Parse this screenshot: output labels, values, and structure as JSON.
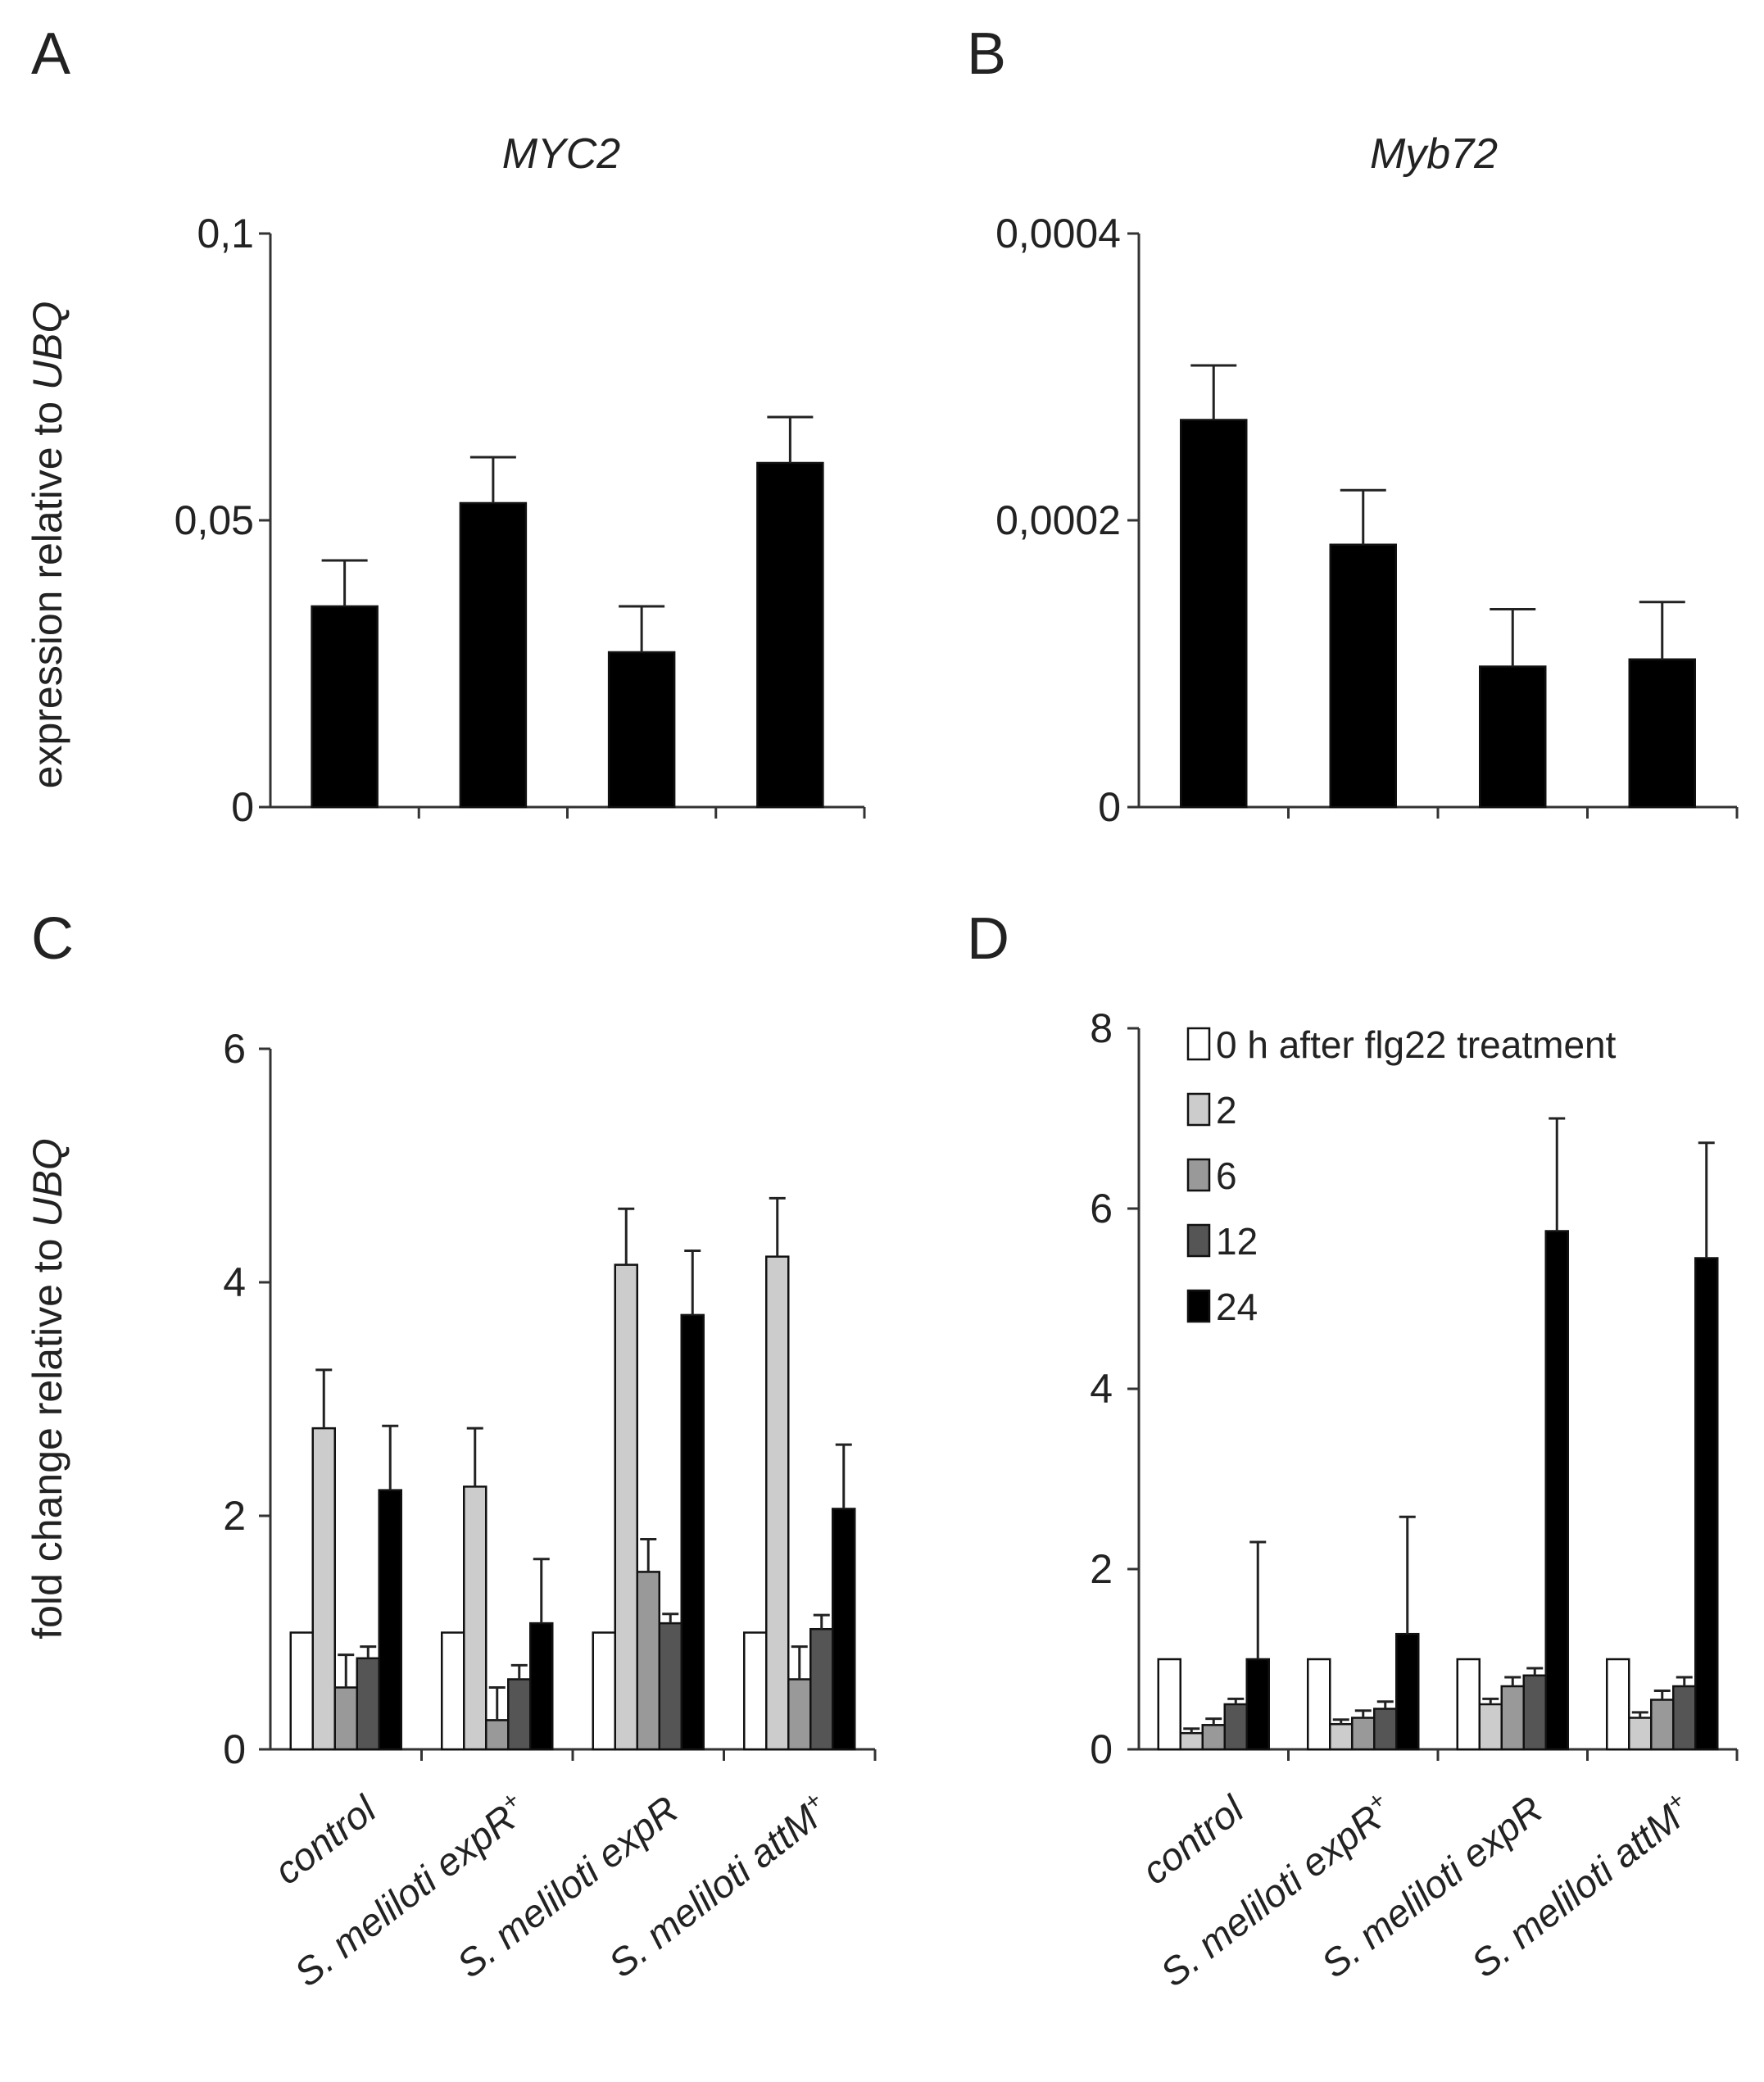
{
  "colors": {
    "series": [
      "#ffffff",
      "#cccccc",
      "#999999",
      "#555555",
      "#000000"
    ],
    "bar_outline": "#111111"
  },
  "ylabels": {
    "top": {
      "prefix": "expression relative to ",
      "italic": "UBQ"
    },
    "bottom": {
      "prefix": "fold change relative to ",
      "italic": "UBQ"
    }
  },
  "categories": [
    {
      "prefix": "",
      "italic": "control",
      "sup": ""
    },
    {
      "prefix": "",
      "italic": "S. meliloti expR",
      "sup": "+"
    },
    {
      "prefix": "",
      "italic": "S. meliloti expR",
      "sup": ""
    },
    {
      "prefix": "",
      "italic": "S. meliloti attM",
      "sup": "+"
    }
  ],
  "chart_data": [
    {
      "panel": "A",
      "type": "bar",
      "title": "MYC2",
      "ylim": [
        0,
        0.1
      ],
      "yticks": [
        0,
        0.05,
        0.1
      ],
      "ytick_labels": [
        "0",
        "0,05",
        "0,1"
      ],
      "series": [
        {
          "values": [
            0.035,
            0.053,
            0.027,
            0.06
          ],
          "errors": [
            0.008,
            0.008,
            0.008,
            0.008
          ]
        }
      ]
    },
    {
      "panel": "B",
      "type": "bar",
      "title": "Myb72",
      "ylim": [
        0,
        0.0004
      ],
      "yticks": [
        0,
        0.0002,
        0.0004
      ],
      "ytick_labels": [
        "0",
        "0,0002",
        "0,0004"
      ],
      "series": [
        {
          "values": [
            0.00027,
            0.000183,
            9.8e-05,
            0.000103
          ],
          "errors": [
            3.8e-05,
            3.8e-05,
            4e-05,
            4e-05
          ]
        }
      ]
    },
    {
      "panel": "C",
      "type": "bar",
      "title": "",
      "ylim": [
        0,
        6
      ],
      "yticks": [
        0,
        2,
        4,
        6
      ],
      "ytick_labels": [
        "0",
        "2",
        "4",
        "6"
      ],
      "series": [
        {
          "values": [
            1.0,
            1.0,
            1.0,
            1.0
          ],
          "errors": [
            0,
            0,
            0,
            0
          ]
        },
        {
          "values": [
            2.75,
            2.25,
            4.15,
            4.22
          ],
          "errors": [
            0.5,
            0.5,
            0.48,
            0.5
          ]
        },
        {
          "values": [
            0.53,
            0.25,
            1.52,
            0.6
          ],
          "errors": [
            0.28,
            0.28,
            0.28,
            0.28
          ]
        },
        {
          "values": [
            0.78,
            0.6,
            1.08,
            1.03
          ],
          "errors": [
            0.1,
            0.12,
            0.08,
            0.12
          ]
        },
        {
          "values": [
            2.22,
            1.08,
            3.72,
            2.06
          ],
          "errors": [
            0.55,
            0.55,
            0.55,
            0.55
          ]
        }
      ]
    },
    {
      "panel": "D",
      "type": "bar",
      "title": "",
      "ylim": [
        0,
        8
      ],
      "yticks": [
        0,
        2,
        4,
        6,
        8
      ],
      "ytick_labels": [
        "0",
        "2",
        "4",
        "6",
        "8"
      ],
      "series": [
        {
          "name": "0 h after flg22 treatment",
          "values": [
            1.0,
            1.0,
            1.0,
            1.0
          ],
          "errors": [
            0,
            0,
            0,
            0
          ]
        },
        {
          "name": "2",
          "values": [
            0.18,
            0.28,
            0.5,
            0.35
          ],
          "errors": [
            0.05,
            0.05,
            0.06,
            0.06
          ]
        },
        {
          "name": "6",
          "values": [
            0.27,
            0.35,
            0.7,
            0.55
          ],
          "errors": [
            0.07,
            0.08,
            0.1,
            0.1
          ]
        },
        {
          "name": "12",
          "values": [
            0.5,
            0.45,
            0.82,
            0.7
          ],
          "errors": [
            0.06,
            0.08,
            0.08,
            0.1
          ]
        },
        {
          "name": "24",
          "values": [
            1.0,
            1.28,
            5.75,
            5.45
          ],
          "errors": [
            1.3,
            1.3,
            1.25,
            1.28
          ]
        }
      ],
      "legend": "top-left"
    }
  ]
}
